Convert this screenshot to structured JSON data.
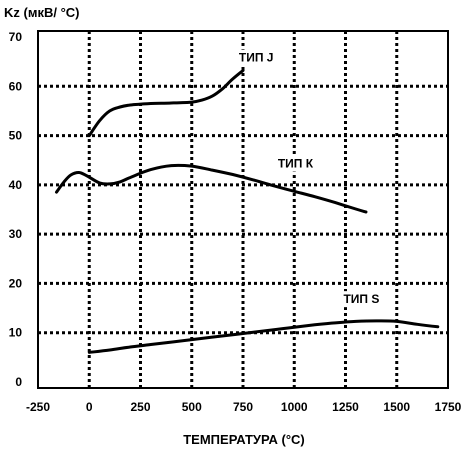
{
  "chart_data": {
    "type": "line",
    "ylabel": "Kz (мкВ/ °С)",
    "xlabel": "ТЕМПЕРАТУРА (°С)",
    "xlim": [
      -250,
      1750
    ],
    "ylim": [
      0,
      70
    ],
    "xticks": [
      -250,
      0,
      250,
      500,
      750,
      1000,
      1250,
      1500,
      1750
    ],
    "xtick_labels": [
      "-250",
      "0",
      "250",
      "500",
      "750",
      "1000",
      "1250",
      "1500",
      "1750"
    ],
    "yticks": [
      0,
      10,
      20,
      30,
      40,
      50,
      60,
      70
    ],
    "ytick_labels": [
      "0",
      "10",
      "20",
      "30",
      "40",
      "50",
      "60",
      "70"
    ],
    "grid": "dotted",
    "legend": "inline labels",
    "series": [
      {
        "name": "ТИП J",
        "x": [
          0,
          50,
          100,
          150,
          200,
          300,
          400,
          500,
          550,
          600,
          650,
          700,
          750
        ],
        "y": [
          50,
          53,
          55,
          55.8,
          56.2,
          56.5,
          56.6,
          56.8,
          57.2,
          58,
          59.5,
          61.5,
          63.2
        ],
        "label_at": [
          730,
          65
        ]
      },
      {
        "name": "ТИП К",
        "x": [
          -160,
          -125,
          -90,
          -50,
          -10,
          50,
          100,
          150,
          200,
          300,
          400,
          500,
          600,
          700,
          800,
          900,
          1000,
          1100,
          1200,
          1300,
          1350
        ],
        "y": [
          38.5,
          40.5,
          42,
          42.5,
          41.8,
          40.4,
          40.2,
          40.6,
          41.5,
          43.1,
          43.9,
          43.8,
          43,
          42.1,
          41,
          39.8,
          38.7,
          37.6,
          36.4,
          35.1,
          34.5
        ],
        "label_at": [
          920,
          43.5
        ]
      },
      {
        "name": "ТИП S",
        "x": [
          0,
          100,
          200,
          300,
          400,
          500,
          600,
          700,
          800,
          900,
          1000,
          1100,
          1200,
          1300,
          1400,
          1500,
          1600,
          1700
        ],
        "y": [
          6,
          6.5,
          7.1,
          7.6,
          8.1,
          8.6,
          9.1,
          9.6,
          10.1,
          10.6,
          11.1,
          11.6,
          12,
          12.3,
          12.4,
          12.3,
          11.7,
          11.2
        ],
        "label_at": [
          1240,
          16
        ]
      }
    ]
  }
}
